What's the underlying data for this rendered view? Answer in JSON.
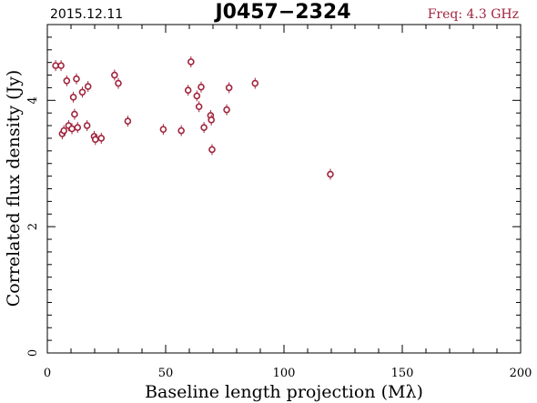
{
  "header": {
    "date": "2015.12.11",
    "source": "J0457−2324",
    "freq": "Freq: 4.3 GHz",
    "freq_color": "#a0243c"
  },
  "chart_data": {
    "type": "scatter",
    "xlabel": "Baseline length projection (Mλ)",
    "ylabel": "Correlated flux density (Jy)",
    "xlim": [
      0,
      200
    ],
    "ylim": [
      0,
      5.2
    ],
    "x_ticks": [
      "0",
      "50",
      "100",
      "150",
      "200"
    ],
    "y_ticks": [
      "0",
      "2",
      "4"
    ],
    "grid": false,
    "marker_color": "#a0243c",
    "points": [
      {
        "x": 3.5,
        "y": 4.55,
        "err": 0.04
      },
      {
        "x": 5.8,
        "y": 4.55,
        "err": 0.04
      },
      {
        "x": 6.3,
        "y": 3.47,
        "err": 0.06
      },
      {
        "x": 7.0,
        "y": 3.52,
        "err": 0.05
      },
      {
        "x": 8.2,
        "y": 4.31,
        "err": 0.04
      },
      {
        "x": 9.0,
        "y": 3.6,
        "err": 0.05
      },
      {
        "x": 10.4,
        "y": 3.55,
        "err": 0.05
      },
      {
        "x": 11.0,
        "y": 4.05,
        "err": 0.04
      },
      {
        "x": 11.5,
        "y": 3.78,
        "err": 0.05
      },
      {
        "x": 12.3,
        "y": 4.34,
        "err": 0.04
      },
      {
        "x": 12.8,
        "y": 3.57,
        "err": 0.05
      },
      {
        "x": 14.8,
        "y": 4.13,
        "err": 0.04
      },
      {
        "x": 16.8,
        "y": 3.6,
        "err": 0.05
      },
      {
        "x": 17.2,
        "y": 4.22,
        "err": 0.04
      },
      {
        "x": 19.8,
        "y": 3.43,
        "err": 0.07
      },
      {
        "x": 20.3,
        "y": 3.38,
        "err": 0.07
      },
      {
        "x": 22.8,
        "y": 3.4,
        "err": 0.06
      },
      {
        "x": 28.4,
        "y": 4.4,
        "err": 0.04
      },
      {
        "x": 30.0,
        "y": 4.27,
        "err": 0.04
      },
      {
        "x": 34.0,
        "y": 3.67,
        "err": 0.05
      },
      {
        "x": 49.0,
        "y": 3.54,
        "err": 0.06
      },
      {
        "x": 56.6,
        "y": 3.52,
        "err": 0.07
      },
      {
        "x": 59.5,
        "y": 4.16,
        "err": 0.04
      },
      {
        "x": 60.7,
        "y": 4.61,
        "err": 0.04
      },
      {
        "x": 63.2,
        "y": 4.07,
        "err": 0.04
      },
      {
        "x": 64.1,
        "y": 3.9,
        "err": 0.05
      },
      {
        "x": 65.0,
        "y": 4.21,
        "err": 0.04
      },
      {
        "x": 66.2,
        "y": 3.57,
        "err": 0.06
      },
      {
        "x": 69.0,
        "y": 3.76,
        "err": 0.05
      },
      {
        "x": 69.3,
        "y": 3.69,
        "err": 0.05
      },
      {
        "x": 69.6,
        "y": 3.22,
        "err": 0.06
      },
      {
        "x": 75.8,
        "y": 3.85,
        "err": 0.05
      },
      {
        "x": 76.8,
        "y": 4.2,
        "err": 0.04
      },
      {
        "x": 87.8,
        "y": 4.27,
        "err": 0.04
      },
      {
        "x": 119.6,
        "y": 2.83,
        "err": 0.08
      }
    ]
  }
}
